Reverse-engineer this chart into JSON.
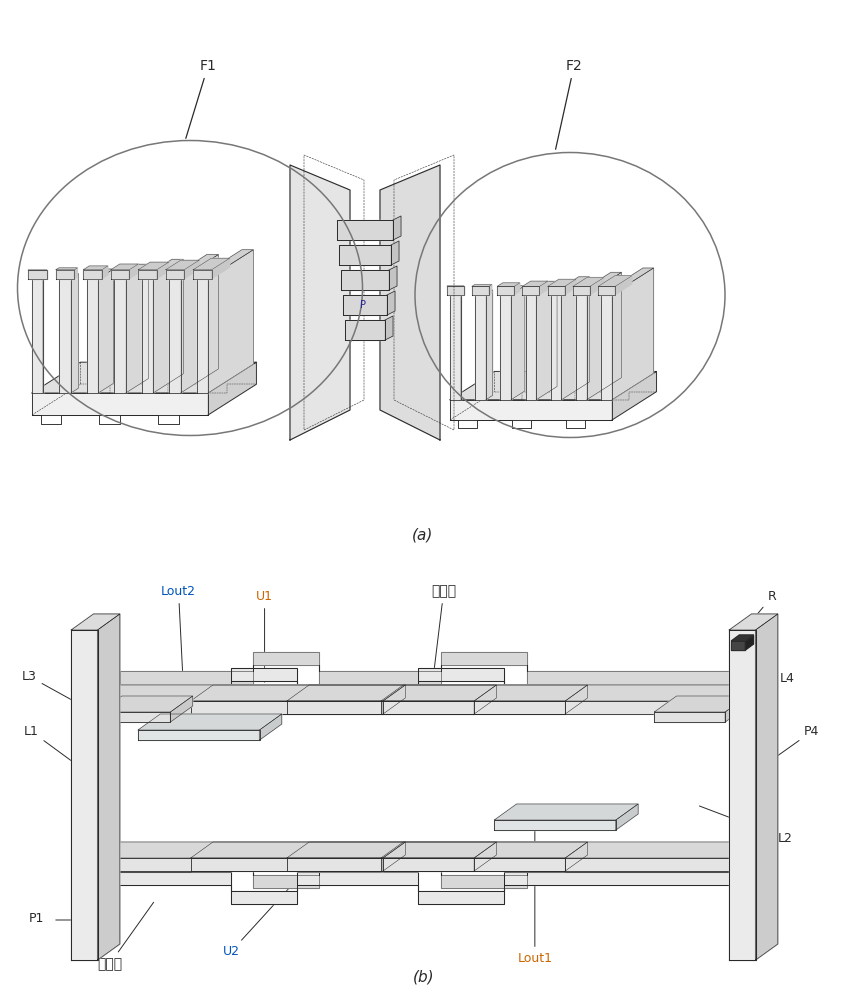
{
  "fig_width": 8.47,
  "fig_height": 10.0,
  "bg_color": "#ffffff",
  "line_color": "#2a2a2a",
  "gray_color": "#999999",
  "label_a": "(a)",
  "label_b": "(b)",
  "label_F1": "F1",
  "label_F2": "F2",
  "label_R": "R",
  "label_U1": "U1",
  "label_U2": "U2",
  "label_L1": "L1",
  "label_L2": "L2",
  "label_L3": "L3",
  "label_L4": "L4",
  "label_Lout1": "Lout1",
  "label_Lout2": "Lout2",
  "label_P1": "P1",
  "label_P4": "P4",
  "label_jdt": "接地端",
  "U1_color": "#cc6600",
  "U2_color": "#0055bb",
  "Lout1_color": "#cc6600",
  "Lout2_color": "#0055bb",
  "font_size_label": 9,
  "font_size_caption": 11
}
